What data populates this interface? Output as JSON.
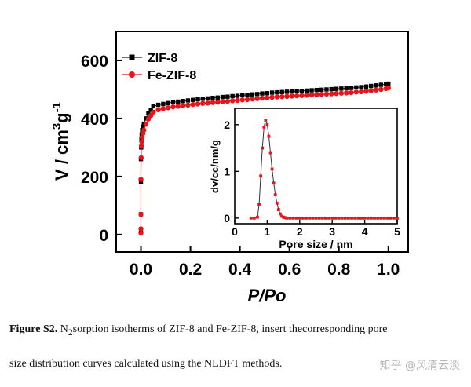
{
  "chart_data": [
    {
      "id": "main",
      "type": "line",
      "xlabel": "P/Po",
      "ylabel": "V / cm3g-1",
      "ylabel_text": "V / cm",
      "ylabel_sup1": "3",
      "ylabel_mid": "g",
      "ylabel_sup2": "-1",
      "xlim": [
        -0.1,
        1.08
      ],
      "ylim": [
        -60,
        700
      ],
      "xticks": [
        0.0,
        0.2,
        0.4,
        0.6,
        0.8,
        1.0
      ],
      "xtick_labels": [
        "0.0",
        "0.2",
        "0.4",
        "0.6",
        "0.8",
        "1.0"
      ],
      "yticks": [
        0,
        200,
        400,
        600
      ],
      "ytick_labels": [
        "0",
        "200",
        "400",
        "600"
      ],
      "legend_position": "top-left",
      "series": [
        {
          "name": "ZIF-8",
          "color": "#000000",
          "marker": "square",
          "x": [
            0.0,
            0.0,
            0.0,
            0.0,
            0.001,
            0.002,
            0.003,
            0.005,
            0.008,
            0.012,
            0.02,
            0.03,
            0.04,
            0.05,
            0.07,
            0.09,
            0.11,
            0.13,
            0.15,
            0.17,
            0.19,
            0.21,
            0.23,
            0.25,
            0.27,
            0.29,
            0.31,
            0.33,
            0.35,
            0.37,
            0.39,
            0.41,
            0.43,
            0.45,
            0.47,
            0.49,
            0.51,
            0.53,
            0.55,
            0.57,
            0.59,
            0.61,
            0.63,
            0.65,
            0.67,
            0.69,
            0.71,
            0.73,
            0.75,
            0.77,
            0.79,
            0.81,
            0.83,
            0.85,
            0.87,
            0.89,
            0.91,
            0.93,
            0.95,
            0.97,
            0.99,
            1.0
          ],
          "y": [
            10,
            70,
            180,
            260,
            300,
            330,
            345,
            360,
            372,
            382,
            400,
            418,
            430,
            442,
            447,
            450,
            453,
            456,
            458,
            460,
            462,
            464,
            466,
            468,
            469,
            471,
            472,
            474,
            475,
            477,
            478,
            480,
            481,
            483,
            484,
            486,
            487,
            489,
            490,
            491,
            492,
            493,
            494,
            495,
            496,
            497,
            498,
            499,
            500,
            501,
            502,
            503,
            504,
            505,
            507,
            508,
            510,
            512,
            514,
            516,
            518,
            520
          ]
        },
        {
          "name": "Fe-ZIF-8",
          "color": "#e8141c",
          "marker": "circle",
          "x": [
            0.0,
            0.0,
            0.0,
            0.0,
            0.001,
            0.002,
            0.003,
            0.005,
            0.008,
            0.012,
            0.02,
            0.03,
            0.04,
            0.05,
            0.07,
            0.09,
            0.11,
            0.13,
            0.15,
            0.17,
            0.19,
            0.21,
            0.23,
            0.25,
            0.27,
            0.29,
            0.31,
            0.33,
            0.35,
            0.37,
            0.39,
            0.41,
            0.43,
            0.45,
            0.47,
            0.49,
            0.51,
            0.53,
            0.55,
            0.57,
            0.59,
            0.61,
            0.63,
            0.65,
            0.67,
            0.69,
            0.71,
            0.73,
            0.75,
            0.77,
            0.79,
            0.81,
            0.83,
            0.85,
            0.87,
            0.89,
            0.91,
            0.93,
            0.95,
            0.97,
            0.99,
            1.0
          ],
          "y": [
            5,
            20,
            70,
            190,
            265,
            305,
            320,
            335,
            348,
            360,
            380,
            398,
            410,
            422,
            430,
            434,
            437,
            440,
            442,
            444,
            446,
            448,
            450,
            452,
            453,
            455,
            456,
            458,
            459,
            461,
            462,
            464,
            465,
            467,
            468,
            470,
            471,
            473,
            474,
            475,
            476,
            477,
            478,
            479,
            480,
            481,
            482,
            483,
            484,
            485,
            486,
            487,
            488,
            489,
            491,
            492,
            494,
            496,
            498,
            500,
            503,
            505
          ]
        }
      ]
    },
    {
      "id": "inset",
      "type": "line",
      "xlabel": "Pore size / nm",
      "ylabel": "dv/cc/nm/g",
      "xlim": [
        0,
        5
      ],
      "ylim": [
        -0.12,
        2.35
      ],
      "xticks": [
        0,
        1,
        2,
        3,
        4,
        5
      ],
      "xtick_labels": [
        "0",
        "1",
        "2",
        "3",
        "4",
        "5"
      ],
      "yticks": [
        0,
        1,
        2
      ],
      "ytick_labels": [
        "0",
        "1",
        "2"
      ],
      "series": [
        {
          "name": "Fe-ZIF-8",
          "color": "#e8141c",
          "marker": "square",
          "x": [
            0.5,
            0.6,
            0.7,
            0.75,
            0.8,
            0.85,
            0.9,
            0.95,
            1.0,
            1.05,
            1.1,
            1.15,
            1.2,
            1.25,
            1.3,
            1.35,
            1.4,
            1.45,
            1.5,
            1.55,
            1.6,
            1.7,
            1.8,
            1.9,
            2.0,
            2.1,
            2.2,
            2.3,
            2.4,
            2.5,
            2.6,
            2.7,
            2.8,
            2.9,
            3.0,
            3.1,
            3.2,
            3.3,
            3.4,
            3.5,
            3.6,
            3.7,
            3.8,
            3.9,
            4.0,
            4.1,
            4.2,
            4.3,
            4.4,
            4.5,
            4.6,
            4.7,
            4.8,
            4.9,
            5.0
          ],
          "y": [
            0.0,
            0.0,
            0.02,
            0.3,
            0.9,
            1.5,
            1.95,
            2.1,
            2.0,
            1.75,
            1.4,
            1.05,
            0.75,
            0.5,
            0.32,
            0.18,
            0.09,
            0.04,
            0.02,
            0.01,
            0.0,
            0.0,
            0.0,
            0.0,
            0.0,
            0.0,
            0.0,
            0.0,
            0.0,
            0.0,
            0.0,
            0.0,
            0.0,
            0.0,
            0.0,
            0.0,
            0.0,
            0.0,
            0.0,
            0.0,
            0.0,
            0.0,
            0.0,
            0.0,
            0.0,
            0.0,
            0.0,
            0.0,
            0.0,
            0.0,
            0.0,
            0.0,
            0.0,
            0.0,
            0.0
          ]
        }
      ]
    }
  ],
  "caption": {
    "label": "Figure S2.",
    "text_part1": " N",
    "subscript": "2",
    "text_part2": "sorption isotherms of ZIF-8 and Fe-ZIF-8, insert thecorresponding pore",
    "line2": "size distribution curves calculated using the NLDFT methods."
  },
  "watermark": {
    "text": "知乎 @风清云淡"
  }
}
